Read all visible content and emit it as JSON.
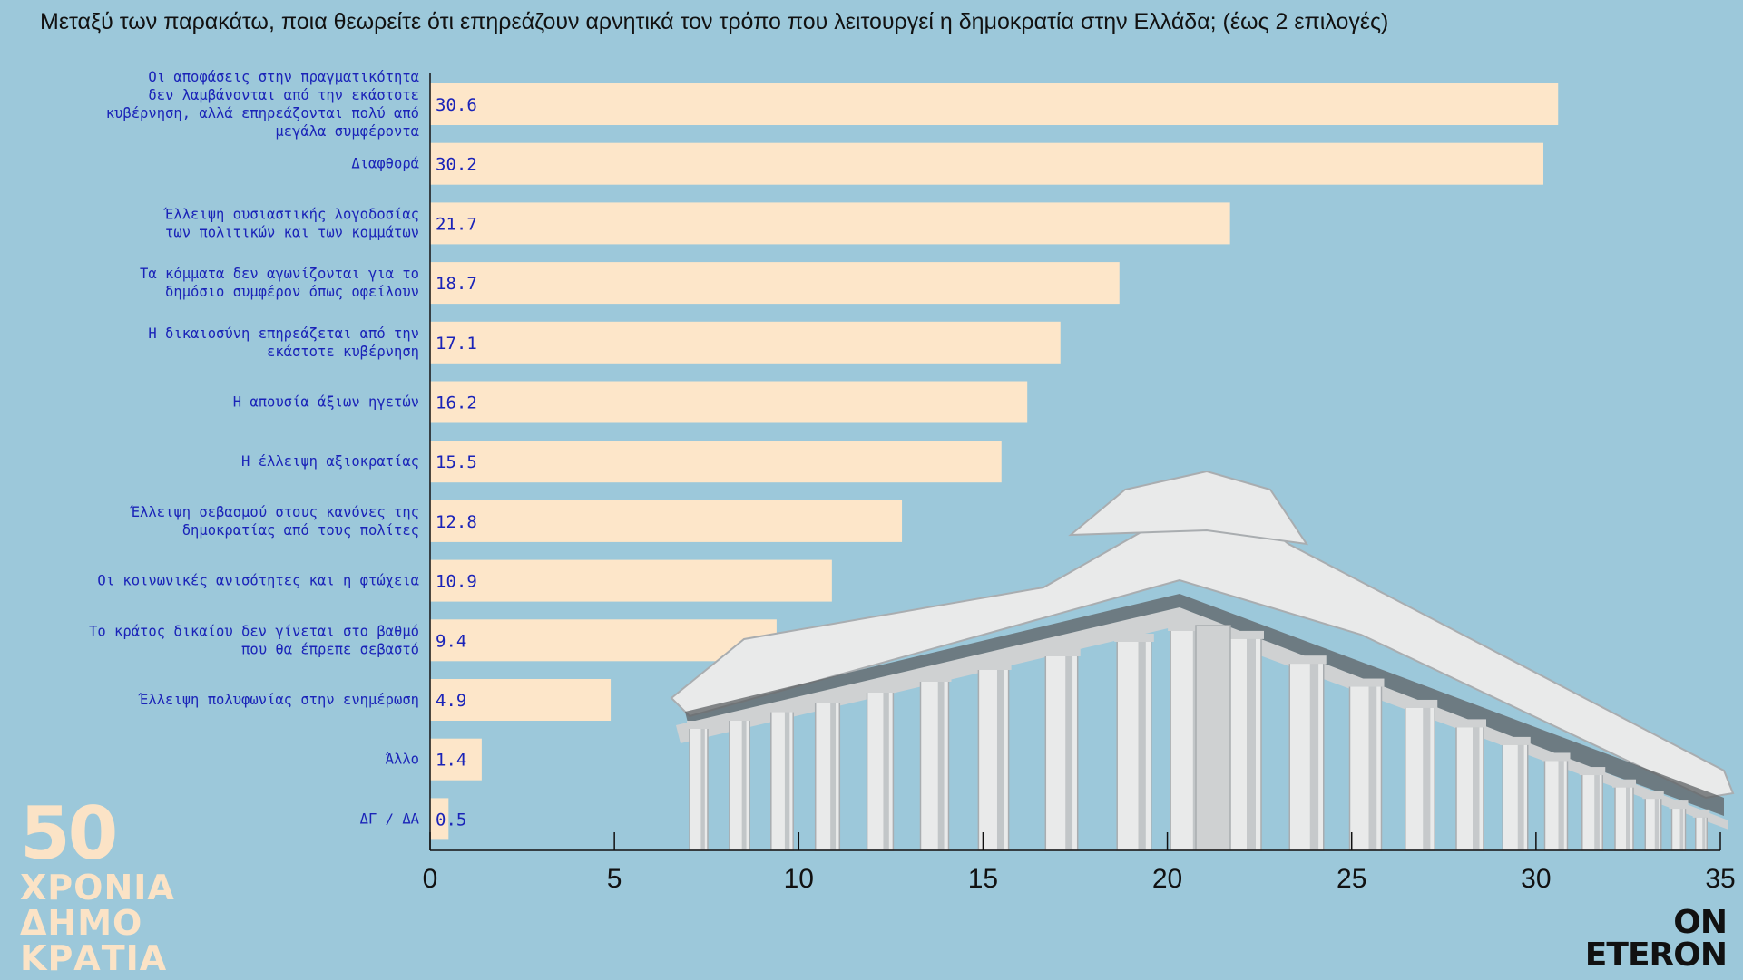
{
  "title": "Μεταξύ των παρακάτω, ποια θεωρείτε ότι επηρεάζουν αρνητικά τον τρόπο που λειτουργεί η δημοκρατία στην Ελλάδα; (έως 2 επιλογές)",
  "colors": {
    "background": "#9cc8da",
    "bar": "#fde6c9",
    "label": "#1a23b8",
    "axis": "#111111",
    "logo": "#fbe3c6"
  },
  "decoration": "parthenon-illustration",
  "chart_data": {
    "type": "bar",
    "orientation": "horizontal",
    "title": "Μεταξύ των παρακάτω, ποια θεωρείτε ότι επηρεάζουν αρνητικά τον τρόπο που λειτουργεί η δημοκρατία στην Ελλάδα; (έως 2 επιλογές)",
    "categories": [
      [
        "Οι αποφάσεις στην πραγματικότητα",
        "δεν λαμβάνονται από την εκάστοτε",
        "κυβέρνηση, αλλά επηρεάζονται πολύ από",
        "μεγάλα συμφέροντα"
      ],
      [
        "Διαφθορά"
      ],
      [
        "Έλλειψη ουσιαστικής λογοδοσίας",
        "των πολιτικών και των κομμάτων"
      ],
      [
        "Τα κόμματα δεν αγωνίζονται για το",
        "δημόσιο συμφέρον όπως οφείλουν"
      ],
      [
        "Η δικαιοσύνη επηρεάζεται από την",
        "εκάστοτε κυβέρνηση"
      ],
      [
        "Η απουσία άξιων ηγετών"
      ],
      [
        "Η έλλειψη αξιοκρατίας"
      ],
      [
        "Έλλειψη σεβασμού στους κανόνες της",
        "δημοκρατίας από τους πολίτες"
      ],
      [
        "Οι κοινωνικές ανισότητες και η φτώχεια"
      ],
      [
        "Το κράτος δικαίου δεν γίνεται στο βαθμό",
        "που θα έπρεπε σεβαστό"
      ],
      [
        "Έλλειψη πολυφωνίας στην ενημέρωση"
      ],
      [
        "Άλλο"
      ],
      [
        "ΔΓ / ΔΑ"
      ]
    ],
    "values": [
      30.6,
      30.2,
      21.7,
      18.7,
      17.1,
      16.2,
      15.5,
      12.8,
      10.9,
      9.4,
      4.9,
      1.4,
      0.5
    ],
    "value_labels": [
      "30.6",
      "30.2",
      "21.7",
      "18.7",
      "17.1",
      "16.2",
      "15.5",
      "12.8",
      "10.9",
      "9.4",
      "4.9",
      "1.4",
      "0.5"
    ],
    "xlim": [
      0,
      35
    ],
    "xticks": [
      0,
      5,
      10,
      15,
      20,
      25,
      30,
      35
    ],
    "xlabel": "",
    "ylabel": "",
    "grid": false,
    "legend": "none"
  },
  "logo": {
    "number": "50",
    "words": [
      "ΧΡΟΝΙΑ",
      "ΔΗΜΟ",
      "ΚΡΑΤΙΑ"
    ]
  },
  "brand": {
    "line1": "ON",
    "line2": "ETERON"
  }
}
